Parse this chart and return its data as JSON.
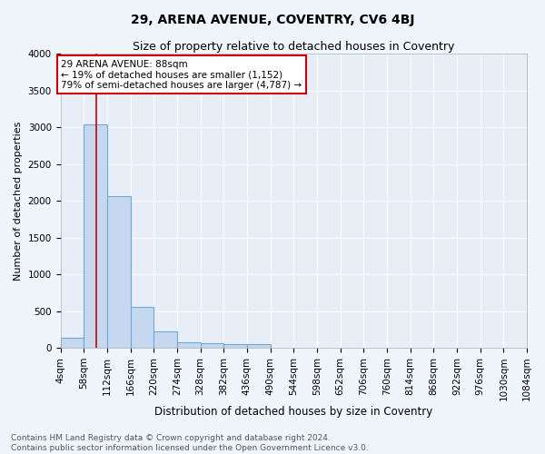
{
  "title1": "29, ARENA AVENUE, COVENTRY, CV6 4BJ",
  "title2": "Size of property relative to detached houses in Coventry",
  "xlabel": "Distribution of detached houses by size in Coventry",
  "ylabel": "Number of detached properties",
  "bin_edges": [
    4,
    58,
    112,
    166,
    220,
    274,
    328,
    382,
    436,
    490,
    544,
    598,
    652,
    706,
    760,
    814,
    868,
    922,
    976,
    1030,
    1084
  ],
  "bar_heights": [
    140,
    3040,
    2060,
    555,
    220,
    80,
    65,
    55,
    55,
    0,
    0,
    0,
    0,
    0,
    0,
    0,
    0,
    0,
    0,
    0
  ],
  "bar_color": "#c5d8f0",
  "bar_edge_color": "#6aaad4",
  "property_size": 88,
  "red_line_color": "#cc0000",
  "annotation_text": "29 ARENA AVENUE: 88sqm\n← 19% of detached houses are smaller (1,152)\n79% of semi-detached houses are larger (4,787) →",
  "annotation_box_color": "#ffffff",
  "annotation_box_edge_color": "#cc0000",
  "ylim": [
    0,
    4000
  ],
  "fig_background_color": "#f0f4fb",
  "ax_background_color": "#e8eef8",
  "footer_text": "Contains HM Land Registry data © Crown copyright and database right 2024.\nContains public sector information licensed under the Open Government Licence v3.0.",
  "title1_fontsize": 10,
  "title2_fontsize": 9,
  "xlabel_fontsize": 8.5,
  "ylabel_fontsize": 8,
  "tick_fontsize": 7.5,
  "annotation_fontsize": 7.5,
  "footer_fontsize": 6.5
}
